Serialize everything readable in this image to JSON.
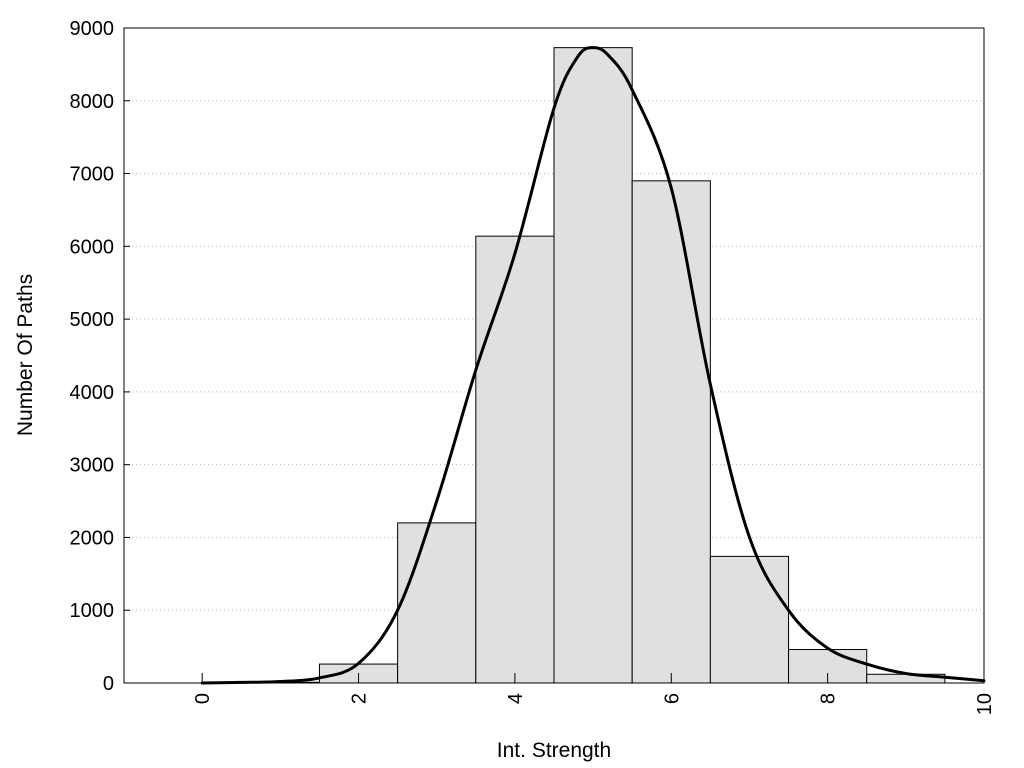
{
  "chart_data": {
    "type": "bar",
    "title": "",
    "xlabel": "Int. Strength",
    "ylabel": "Number Of Paths",
    "xlim": [
      -1,
      10
    ],
    "ylim": [
      0,
      9000
    ],
    "x_ticks": [
      "0",
      "2",
      "4",
      "6",
      "8",
      "10"
    ],
    "x_tick_values": [
      0,
      2,
      4,
      6,
      8,
      10
    ],
    "y_ticks": [
      "0",
      "1000",
      "2000",
      "3000",
      "4000",
      "5000",
      "6000",
      "7000",
      "8000",
      "9000"
    ],
    "y_tick_values": [
      0,
      1000,
      2000,
      3000,
      4000,
      5000,
      6000,
      7000,
      8000,
      9000
    ],
    "grid": "horizontal dotted",
    "bar_color": "#e0e0e0",
    "bar_edge_color": "#000000",
    "curve_color": "#000000",
    "series": [
      {
        "type": "bar",
        "bin_width": 1,
        "x": [
          0,
          1,
          2,
          3,
          4,
          5,
          6,
          7,
          8,
          9
        ],
        "values": [
          0,
          10,
          260,
          2200,
          6140,
          8730,
          6900,
          1740,
          460,
          120
        ]
      },
      {
        "type": "line",
        "x": [
          0,
          0.5,
          1,
          1.5,
          2,
          2.5,
          3,
          3.5,
          4,
          4.5,
          4.8,
          5,
          5.2,
          5.5,
          6,
          6.5,
          7,
          7.5,
          8,
          8.5,
          9,
          9.5,
          10
        ],
        "values": [
          0,
          8,
          20,
          70,
          270,
          1000,
          2500,
          4300,
          5900,
          7900,
          8600,
          8730,
          8620,
          8150,
          6800,
          4100,
          2000,
          1000,
          480,
          260,
          130,
          80,
          30
        ]
      }
    ]
  }
}
